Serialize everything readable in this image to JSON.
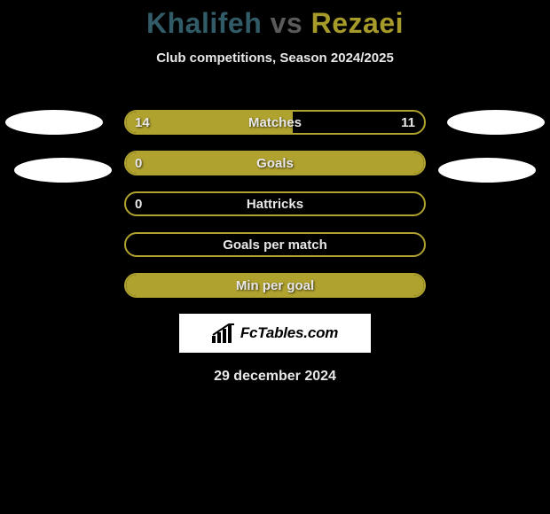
{
  "header": {
    "player1": "Khalifeh",
    "vs": "vs",
    "player2": "Rezaei",
    "subtitle": "Club competitions, Season 2024/2025"
  },
  "stats": {
    "rows": [
      {
        "label": "Matches",
        "left": "14",
        "right": "11",
        "fill_pct": 56
      },
      {
        "label": "Goals",
        "left": "0",
        "right": "",
        "fill_pct": 100
      },
      {
        "label": "Hattricks",
        "left": "0",
        "right": "",
        "fill_pct": 0
      },
      {
        "label": "Goals per match",
        "left": "",
        "right": "",
        "fill_pct": 0
      },
      {
        "label": "Min per goal",
        "left": "",
        "right": "",
        "fill_pct": 100
      }
    ],
    "bar_border_color": "#b0a22f",
    "bar_fill_color": "#b0a22f",
    "text_color": "#e8e8e8",
    "label_fontsize": 15
  },
  "colors": {
    "background": "#000000",
    "player1_color": "#315b66",
    "vs_color": "#5a5a5a",
    "player2_color": "#a69a2a",
    "ellipse_color": "#ffffff",
    "banner_bg": "#ffffff"
  },
  "banner": {
    "text": "FcTables.com"
  },
  "date": "29 december 2024"
}
